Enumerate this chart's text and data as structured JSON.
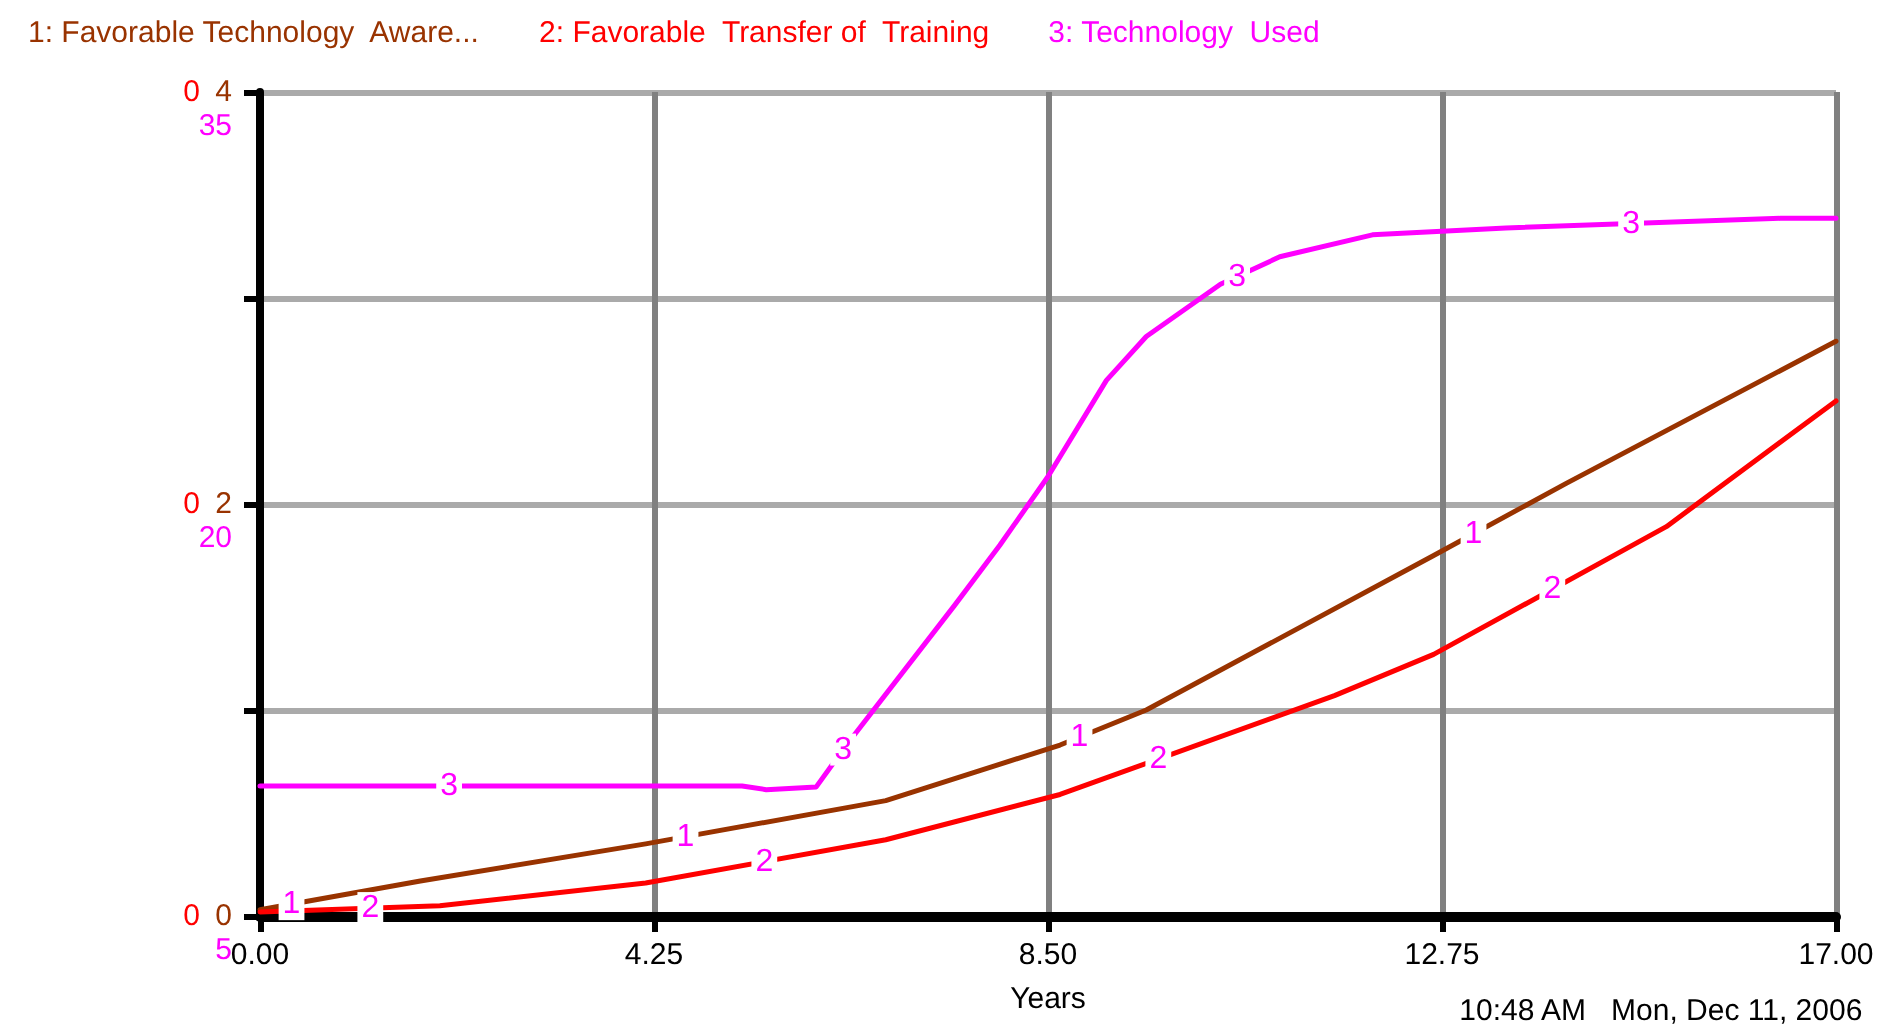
{
  "chart_data": {
    "type": "line",
    "xlabel": "Years",
    "xlim": [
      0,
      17
    ],
    "xticks": [
      {
        "value": 0,
        "label": "0.00"
      },
      {
        "value": 4.25,
        "label": "4.25"
      },
      {
        "value": 8.5,
        "label": "8.50"
      },
      {
        "value": 12.75,
        "label": "12.75"
      },
      {
        "value": 17,
        "label": "17.00"
      }
    ],
    "ylim": [
      0,
      4
    ],
    "yticks": [
      0,
      {
        "value": 1,
        "label": null
      },
      2,
      {
        "value": 3,
        "label": null
      },
      4
    ],
    "y2lim": [
      5,
      35
    ],
    "y2ticks": [
      5,
      20,
      35
    ],
    "y3lim": [
      0,
      0.4
    ],
    "y3ticks": [
      0,
      {
        "value": 0.2,
        "label": "0"
      },
      {
        "value": 0.4,
        "label": "0"
      }
    ],
    "grid": true,
    "legend": "top left",
    "marker": "none",
    "line_style": "solid",
    "series": [
      {
        "name": "1: Favorable Technology  Aware...",
        "color": "#993300",
        "x": [
          0,
          1.73,
          4.16,
          6.75,
          8.63,
          9.56,
          12.66,
          14.09,
          17
        ],
        "values": [
          0.03,
          0.17,
          0.35,
          0.56,
          0.83,
          1.0,
          1.75,
          2.1,
          2.79
        ]
      },
      {
        "name": "2: Favorable  Transfer of  Training",
        "color": "#ff0000",
        "axis": "y3",
        "x": [
          0,
          1.94,
          4.16,
          6.75,
          8.63,
          11.59,
          12.66,
          15.17,
          17
        ],
        "values": [
          0.002,
          0.005,
          0.016,
          0.037,
          0.059,
          0.107,
          0.127,
          0.189,
          0.25
        ]
      },
      {
        "name": "3: Technology  Used",
        "color": "#ff00ff",
        "axis": "y2",
        "x": [
          0,
          5.2,
          5.46,
          6.0,
          6.32,
          7.49,
          7.98,
          8.5,
          9.13,
          9.56,
          10.36,
          11.0,
          12.0,
          13.44,
          16.4,
          17
        ],
        "values": [
          9.73,
          9.73,
          9.6,
          9.7,
          11.2,
          16.3,
          18.5,
          21.0,
          24.5,
          26.1,
          28.0,
          29.0,
          29.8,
          30.05,
          30.4,
          30.4
        ]
      }
    ],
    "annotations": [
      "1",
      "1",
      "1",
      "1",
      "2",
      "2",
      "2",
      "2",
      "3",
      "3",
      "3",
      "3",
      "10:48 AM   Mon, Dec 11, 2006"
    ]
  }
}
